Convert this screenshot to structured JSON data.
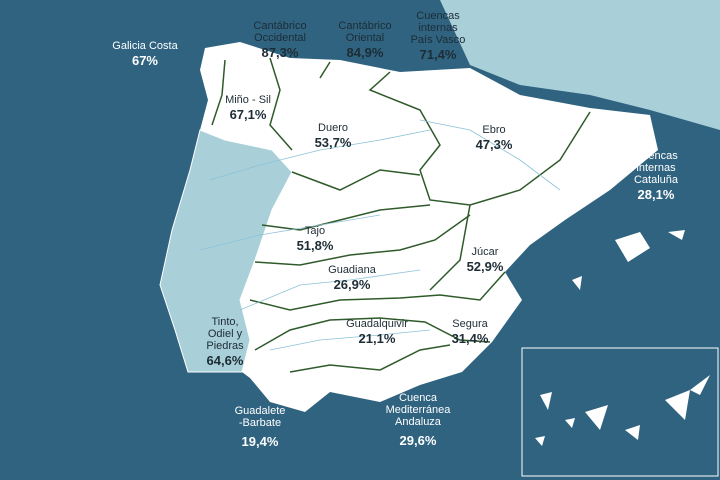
{
  "basins": [
    {
      "name": [
        "Galicia Costa"
      ],
      "value": "67%"
    },
    {
      "name": [
        "Cantábrico",
        "Occidental"
      ],
      "value": "87,3%"
    },
    {
      "name": [
        "Cantábrico",
        "Oriental"
      ],
      "value": "84,9%"
    },
    {
      "name": [
        "Cuencas",
        "internas",
        "País Vasco"
      ],
      "value": "71,4%"
    },
    {
      "name": [
        "Miño - Sil"
      ],
      "value": "67,1%"
    },
    {
      "name": [
        "Duero"
      ],
      "value": "53,7%"
    },
    {
      "name": [
        "Ebro"
      ],
      "value": "47,3%"
    },
    {
      "name": [
        "Cuencas",
        "internas",
        "Cataluña"
      ],
      "value": "28,1%"
    },
    {
      "name": [
        "Tajo"
      ],
      "value": "51,8%"
    },
    {
      "name": [
        "Júcar"
      ],
      "value": "52,9%"
    },
    {
      "name": [
        "Guadiana"
      ],
      "value": "26,9%"
    },
    {
      "name": [
        "Guadalquivir"
      ],
      "value": "21,1%"
    },
    {
      "name": [
        "Segura"
      ],
      "value": "31,4%"
    },
    {
      "name": [
        "Tinto,",
        "Odiel y",
        "Piedras"
      ],
      "value": "64,6%"
    },
    {
      "name": [
        "Guadalete",
        "-Barbate"
      ],
      "value": "19,4%"
    },
    {
      "name": [
        "Cuenca",
        "Mediterránea",
        "Andaluza"
      ],
      "value": "29,6%"
    }
  ]
}
